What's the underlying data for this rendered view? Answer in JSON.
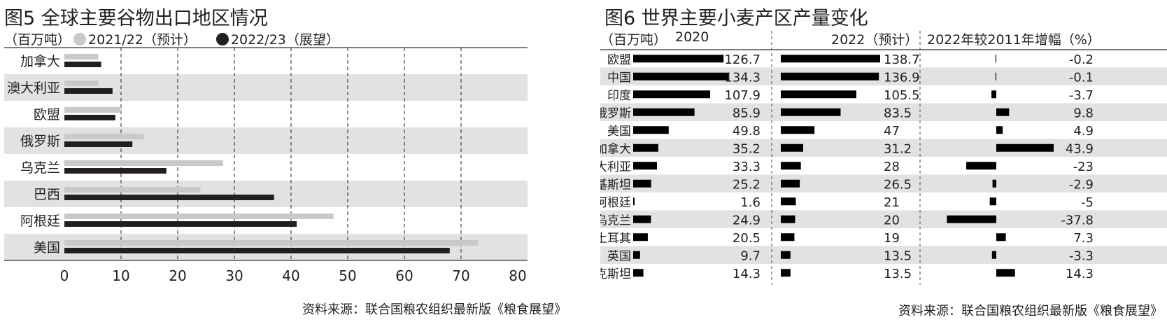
{
  "colors": {
    "band": "#e1e2e3",
    "series2021": "#c8c9ca",
    "series2022": "#231f20",
    "bar": "#000000",
    "text": "#231f20",
    "axis": "#333333"
  },
  "fig5": {
    "title": "图5 全球主要谷物出口地区情况",
    "unit": "（百万吨）",
    "legend": [
      "2021/22（预计）",
      "2022/23（展望）"
    ],
    "source": "资料来源：联合国粮农组织最新版《粮食展望》"
  },
  "fig6": {
    "title": "图6 世界主要小麦产区产量变化",
    "unit": "（百万吨）",
    "col1": "2020",
    "col2": "2022（预计）",
    "col3": "2022年较2011年增幅（%）",
    "source": "资料来源：联合国粮农组织最新版《粮食展望》"
  },
  "chart_data": [
    {
      "type": "bar",
      "orientation": "horizontal",
      "title": "图5 全球主要谷物出口地区情况",
      "unit": "（百万吨）",
      "categories": [
        "加拿大",
        "澳大利亚",
        "欧盟",
        "俄罗斯",
        "乌克兰",
        "巴西",
        "阿根廷",
        "美国"
      ],
      "series": [
        {
          "name": "2021/22（预计）",
          "values": [
            6,
            6,
            10,
            14,
            28,
            24,
            47.5,
            73
          ],
          "color": "#c8c9ca"
        },
        {
          "name": "2022/23（展望）",
          "values": [
            6.5,
            8.5,
            9,
            12,
            18,
            37,
            41,
            68
          ],
          "color": "#231f20"
        }
      ],
      "xlim": [
        0,
        80
      ],
      "xticks": [
        "0",
        "10",
        "20",
        "30",
        "40",
        "50",
        "60",
        "70",
        "80"
      ],
      "grid": "dashed vertical",
      "legend": "top-left"
    },
    {
      "type": "table",
      "title": "图6 世界主要小麦产区产量变化",
      "unit": "（百万吨）",
      "columns": [
        "2020",
        "2022（预计）",
        "2022年较2011年增幅（%）"
      ],
      "rows": [
        {
          "region": "欧盟",
          "v2020": "126.7",
          "v2022": "138.7",
          "change": "-0.2"
        },
        {
          "region": "中国",
          "v2020": "134.3",
          "v2022": "136.9",
          "change": "-0.1"
        },
        {
          "region": "印度",
          "v2020": "107.9",
          "v2022": "105.5",
          "change": "-3.7"
        },
        {
          "region": "俄罗斯",
          "v2020": "85.9",
          "v2022": "83.5",
          "change": "9.8"
        },
        {
          "region": "美国",
          "v2020": "49.8",
          "v2022": "47",
          "change": "4.9"
        },
        {
          "region": "加拿大",
          "v2020": "35.2",
          "v2022": "31.2",
          "change": "43.9"
        },
        {
          "region": "澳大利亚",
          "v2020": "33.3",
          "v2022": "28",
          "change": "-23"
        },
        {
          "region": "巴基斯坦",
          "v2020": "25.2",
          "v2022": "26.5",
          "change": "-2.9"
        },
        {
          "region": "阿根廷",
          "v2020": "1.6",
          "v2022": "21",
          "change": "-5"
        },
        {
          "region": "乌克兰",
          "v2020": "24.9",
          "v2022": "20",
          "change": "-37.8"
        },
        {
          "region": "土耳其",
          "v2020": "20.5",
          "v2022": "19",
          "change": "7.3"
        },
        {
          "region": "英国",
          "v2020": "9.7",
          "v2022": "13.5",
          "change": "-3.3"
        },
        {
          "region": "哈萨克斯坦",
          "v2020": "14.3",
          "v2022": "13.5",
          "change": "14.3"
        }
      ]
    }
  ]
}
